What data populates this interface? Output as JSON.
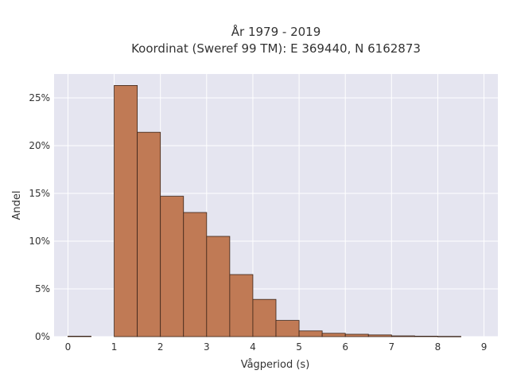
{
  "chart_data": {
    "type": "bar",
    "title_lines": [
      "År 1979 - 2019",
      "Koordinat (Sweref 99 TM): E 369440, N 6162873"
    ],
    "xlabel": "Vågperiod (s)",
    "ylabel": "Andel",
    "x_ticks": [
      "0",
      "1",
      "2",
      "3",
      "4",
      "5",
      "6",
      "7",
      "8",
      "9"
    ],
    "y_ticks": [
      "0%",
      "5%",
      "10%",
      "15%",
      "20%",
      "25%"
    ],
    "xlim": [
      -0.3,
      9.3
    ],
    "ylim": [
      0,
      27.5
    ],
    "y_unit": "%",
    "bins": [
      {
        "start": 0.0,
        "end": 0.5,
        "value": 0.05
      },
      {
        "start": 1.0,
        "end": 1.5,
        "value": 26.3
      },
      {
        "start": 1.5,
        "end": 2.0,
        "value": 21.4
      },
      {
        "start": 2.0,
        "end": 2.5,
        "value": 14.7
      },
      {
        "start": 2.5,
        "end": 3.0,
        "value": 13.0
      },
      {
        "start": 3.0,
        "end": 3.5,
        "value": 10.5
      },
      {
        "start": 3.5,
        "end": 4.0,
        "value": 6.5
      },
      {
        "start": 4.0,
        "end": 4.5,
        "value": 3.9
      },
      {
        "start": 4.5,
        "end": 5.0,
        "value": 1.7
      },
      {
        "start": 5.0,
        "end": 5.5,
        "value": 0.6
      },
      {
        "start": 5.5,
        "end": 6.0,
        "value": 0.35
      },
      {
        "start": 6.0,
        "end": 6.5,
        "value": 0.25
      },
      {
        "start": 6.5,
        "end": 7.0,
        "value": 0.18
      },
      {
        "start": 7.0,
        "end": 7.5,
        "value": 0.08
      },
      {
        "start": 7.5,
        "end": 8.0,
        "value": 0.05
      },
      {
        "start": 8.0,
        "end": 8.5,
        "value": 0.03
      }
    ],
    "grid": true,
    "colors": {
      "bar_fill": "#c07a55",
      "bar_stroke": "#3a2418",
      "plot_background": "#e5e5f0",
      "grid": "#ffffff"
    }
  }
}
